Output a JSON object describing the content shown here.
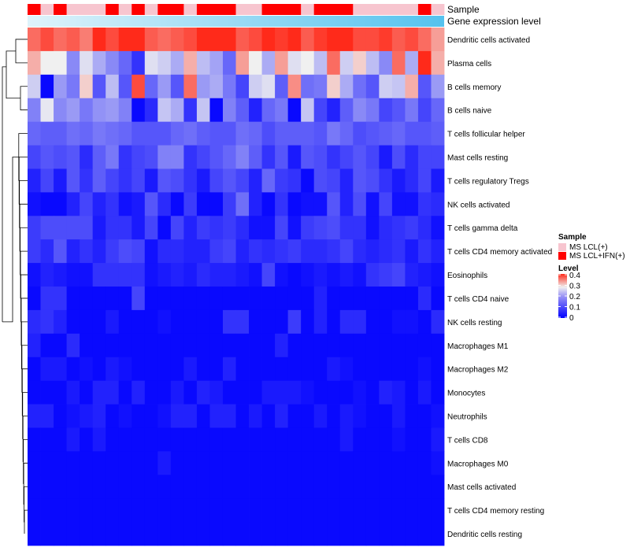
{
  "chart_data": {
    "type": "heatmap",
    "title": "",
    "annotation_tracks": [
      "Sample",
      "Gene expression level"
    ],
    "rows": [
      "Dendritic cells activated",
      "Plasma cells",
      "B cells memory",
      "B cells naive",
      "T cells follicular helper",
      "Mast cells resting",
      "T cells regulatory  Tregs",
      "NK cells activated",
      "T cells gamma delta",
      "T cells CD4 memory activated",
      "Eosinophils",
      "T cells CD4 naive",
      "NK cells resting",
      "Macrophages M1",
      "Macrophages M2",
      "Monocytes",
      "Neutrophils",
      "T cells CD8",
      "Macrophages M0",
      "Mast cells activated",
      "T cells CD4 memory resting",
      "Dendritic cells resting"
    ],
    "sample_groups": [
      1,
      0,
      1,
      0,
      0,
      0,
      1,
      0,
      1,
      0,
      1,
      1,
      0,
      1,
      1,
      1,
      0,
      0,
      1,
      1,
      1,
      0,
      1,
      1,
      1,
      0,
      0,
      0,
      0,
      0,
      1,
      0
    ],
    "values": [
      [
        0.36,
        0.38,
        0.36,
        0.37,
        0.35,
        0.4,
        0.38,
        0.4,
        0.4,
        0.37,
        0.36,
        0.37,
        0.38,
        0.4,
        0.4,
        0.4,
        0.37,
        0.38,
        0.4,
        0.39,
        0.4,
        0.37,
        0.39,
        0.4,
        0.4,
        0.38,
        0.38,
        0.39,
        0.37,
        0.38,
        0.36,
        0.33
      ],
      [
        0.32,
        0.28,
        0.28,
        0.16,
        0.26,
        0.2,
        0.16,
        0.12,
        0.06,
        0.26,
        0.24,
        0.2,
        0.32,
        0.22,
        0.19,
        0.12,
        0.33,
        0.28,
        0.2,
        0.33,
        0.26,
        0.28,
        0.22,
        0.36,
        0.24,
        0.3,
        0.22,
        0.16,
        0.36,
        0.2,
        0.4,
        0.32
      ],
      [
        0.24,
        0.01,
        0.18,
        0.14,
        0.3,
        0.1,
        0.22,
        0.1,
        0.38,
        0.12,
        0.18,
        0.1,
        0.36,
        0.18,
        0.2,
        0.14,
        0.08,
        0.24,
        0.26,
        0.11,
        0.34,
        0.13,
        0.14,
        0.3,
        0.2,
        0.13,
        0.1,
        0.24,
        0.23,
        0.32,
        0.1,
        0.18
      ],
      [
        0.15,
        0.27,
        0.16,
        0.18,
        0.14,
        0.17,
        0.18,
        0.15,
        0.01,
        0.05,
        0.23,
        0.2,
        0.06,
        0.23,
        0.01,
        0.15,
        0.11,
        0.04,
        0.12,
        0.14,
        0.01,
        0.23,
        0.08,
        0.04,
        0.11,
        0.16,
        0.14,
        0.08,
        0.1,
        0.14,
        0.08,
        0.12
      ],
      [
        0.12,
        0.11,
        0.11,
        0.13,
        0.12,
        0.14,
        0.13,
        0.12,
        0.1,
        0.1,
        0.1,
        0.12,
        0.13,
        0.11,
        0.1,
        0.1,
        0.13,
        0.12,
        0.09,
        0.11,
        0.11,
        0.11,
        0.1,
        0.14,
        0.12,
        0.09,
        0.1,
        0.11,
        0.12,
        0.1,
        0.1,
        0.11
      ],
      [
        0.08,
        0.1,
        0.09,
        0.1,
        0.05,
        0.11,
        0.14,
        0.06,
        0.08,
        0.09,
        0.15,
        0.15,
        0.06,
        0.08,
        0.1,
        0.12,
        0.15,
        0.11,
        0.06,
        0.1,
        0.03,
        0.1,
        0.09,
        0.06,
        0.08,
        0.1,
        0.08,
        0.03,
        0.09,
        0.05,
        0.08,
        0.08
      ],
      [
        0.04,
        0.08,
        0.03,
        0.1,
        0.06,
        0.11,
        0.08,
        0.06,
        0.08,
        0.03,
        0.1,
        0.09,
        0.06,
        0.03,
        0.08,
        0.1,
        0.08,
        0.04,
        0.12,
        0.07,
        0.06,
        0.01,
        0.09,
        0.08,
        0.04,
        0.1,
        0.09,
        0.06,
        0.03,
        0.05,
        0.08,
        0.03
      ],
      [
        0.02,
        0.01,
        0.01,
        0.04,
        0.08,
        0.04,
        0.06,
        0.02,
        0.03,
        0.1,
        0.05,
        0.01,
        0.07,
        0.01,
        0.01,
        0.07,
        0.13,
        0.04,
        0.01,
        0.06,
        0.01,
        0.02,
        0.02,
        0.1,
        0.04,
        0.09,
        0.02,
        0.08,
        0.02,
        0.02,
        0.06,
        0.05
      ],
      [
        0.07,
        0.09,
        0.09,
        0.09,
        0.09,
        0.03,
        0.06,
        0.06,
        0.03,
        0.08,
        0.01,
        0.08,
        0.04,
        0.07,
        0.06,
        0.07,
        0.05,
        0.02,
        0.02,
        0.08,
        0.02,
        0.07,
        0.08,
        0.09,
        0.06,
        0.06,
        0.02,
        0.05,
        0.06,
        0.07,
        0.05,
        0.02
      ],
      [
        0.07,
        0.05,
        0.1,
        0.04,
        0.06,
        0.04,
        0.07,
        0.09,
        0.08,
        0.02,
        0.05,
        0.05,
        0.04,
        0.04,
        0.07,
        0.08,
        0.04,
        0.06,
        0.05,
        0.06,
        0.07,
        0.05,
        0.05,
        0.06,
        0.08,
        0.05,
        0.04,
        0.05,
        0.06,
        0.03,
        0.06,
        0.04
      ],
      [
        0.02,
        0.04,
        0.03,
        0.02,
        0.02,
        0.06,
        0.06,
        0.06,
        0.06,
        0.02,
        0.03,
        0.04,
        0.03,
        0.05,
        0.04,
        0.04,
        0.03,
        0.02,
        0.08,
        0.02,
        0.01,
        0.02,
        0.03,
        0.02,
        0.03,
        0.02,
        0.06,
        0.07,
        0.08,
        0.04,
        0.03,
        0.02
      ],
      [
        0.01,
        0.06,
        0.06,
        0.01,
        0.01,
        0.01,
        0.01,
        0.01,
        0.08,
        0.01,
        0.01,
        0.01,
        0.01,
        0.01,
        0.01,
        0.01,
        0.01,
        0.01,
        0.01,
        0.01,
        0.01,
        0.01,
        0.04,
        0.01,
        0.01,
        0.01,
        0.01,
        0.01,
        0.01,
        0.01,
        0.05,
        0.01
      ],
      [
        0.05,
        0.06,
        0.04,
        0.01,
        0.01,
        0.01,
        0.03,
        0.01,
        0.01,
        0.01,
        0.02,
        0.01,
        0.01,
        0.01,
        0.01,
        0.06,
        0.06,
        0.01,
        0.01,
        0.01,
        0.07,
        0.01,
        0.04,
        0.01,
        0.05,
        0.05,
        0.01,
        0.01,
        0.02,
        0.02,
        0.01,
        0.05
      ],
      [
        0.04,
        0.01,
        0.01,
        0.05,
        0.01,
        0.01,
        0.01,
        0.01,
        0.01,
        0.01,
        0.01,
        0.01,
        0.01,
        0.01,
        0.01,
        0.01,
        0.01,
        0.01,
        0.01,
        0.04,
        0.01,
        0.01,
        0.01,
        0.01,
        0.01,
        0.01,
        0.01,
        0.01,
        0.01,
        0.01,
        0.01,
        0.01
      ],
      [
        0.01,
        0.03,
        0.03,
        0.01,
        0.02,
        0.01,
        0.03,
        0.02,
        0.01,
        0.01,
        0.01,
        0.01,
        0.03,
        0.01,
        0.01,
        0.04,
        0.01,
        0.01,
        0.01,
        0.01,
        0.01,
        0.01,
        0.01,
        0.03,
        0.02,
        0.01,
        0.01,
        0.01,
        0.01,
        0.01,
        0.02,
        0.01
      ],
      [
        0.01,
        0.01,
        0.01,
        0.03,
        0.01,
        0.04,
        0.04,
        0.01,
        0.04,
        0.01,
        0.01,
        0.03,
        0.01,
        0.04,
        0.03,
        0.01,
        0.01,
        0.01,
        0.03,
        0.03,
        0.03,
        0.02,
        0.01,
        0.01,
        0.01,
        0.02,
        0.01,
        0.04,
        0.03,
        0.01,
        0.03,
        0.01
      ],
      [
        0.04,
        0.04,
        0.01,
        0.02,
        0.03,
        0.04,
        0.01,
        0.02,
        0.01,
        0.01,
        0.02,
        0.04,
        0.04,
        0.01,
        0.04,
        0.04,
        0.01,
        0.03,
        0.01,
        0.04,
        0.01,
        0.01,
        0.03,
        0.01,
        0.03,
        0.02,
        0.01,
        0.01,
        0.03,
        0.01,
        0.01,
        0.02
      ],
      [
        0.01,
        0.01,
        0.01,
        0.03,
        0.01,
        0.03,
        0.01,
        0.01,
        0.01,
        0.01,
        0.01,
        0.01,
        0.01,
        0.01,
        0.01,
        0.01,
        0.01,
        0.01,
        0.01,
        0.01,
        0.01,
        0.01,
        0.01,
        0.01,
        0.03,
        0.01,
        0.01,
        0.01,
        0.02,
        0.01,
        0.01,
        0.03
      ],
      [
        0.01,
        0.01,
        0.01,
        0.01,
        0.01,
        0.01,
        0.01,
        0.01,
        0.01,
        0.01,
        0.03,
        0.01,
        0.01,
        0.01,
        0.01,
        0.01,
        0.01,
        0.01,
        0.01,
        0.01,
        0.01,
        0.01,
        0.01,
        0.01,
        0.01,
        0.01,
        0.01,
        0.01,
        0.01,
        0.01,
        0.01,
        0.02
      ],
      [
        0.01,
        0.01,
        0.01,
        0.01,
        0.01,
        0.01,
        0.01,
        0.01,
        0.01,
        0.01,
        0.01,
        0.01,
        0.01,
        0.01,
        0.01,
        0.01,
        0.01,
        0.01,
        0.01,
        0.01,
        0.01,
        0.01,
        0.01,
        0.01,
        0.01,
        0.01,
        0.01,
        0.01,
        0.01,
        0.01,
        0.01,
        0.01
      ],
      [
        0.01,
        0.01,
        0.01,
        0.01,
        0.01,
        0.01,
        0.01,
        0.01,
        0.01,
        0.01,
        0.01,
        0.01,
        0.01,
        0.01,
        0.01,
        0.01,
        0.01,
        0.01,
        0.01,
        0.01,
        0.01,
        0.01,
        0.01,
        0.01,
        0.01,
        0.01,
        0.01,
        0.01,
        0.01,
        0.01,
        0.01,
        0.01
      ],
      [
        0.01,
        0.01,
        0.01,
        0.01,
        0.01,
        0.01,
        0.01,
        0.01,
        0.01,
        0.01,
        0.01,
        0.01,
        0.01,
        0.01,
        0.01,
        0.01,
        0.01,
        0.01,
        0.01,
        0.01,
        0.01,
        0.01,
        0.01,
        0.01,
        0.01,
        0.01,
        0.01,
        0.01,
        0.01,
        0.01,
        0.01,
        0.01
      ]
    ],
    "legend": {
      "sample_title": "Sample",
      "sample_entries": [
        {
          "label": "MS LCL(+)",
          "color": "#f7c5cf"
        },
        {
          "label": "MS LCL+IFN(+)",
          "color": "#ff0000"
        }
      ],
      "level_title": "Level",
      "level_ticks": [
        "0.4",
        "0.3",
        "0.2",
        "0.1",
        "0"
      ],
      "level_range": [
        0,
        0.4
      ],
      "colors": {
        "low": "#0000ff",
        "mid": "#f0f0f0",
        "high": "#ff2a1a",
        "mid_value": 0.28
      }
    },
    "gene_expression_gradient": {
      "from": "#dff3fb",
      "to": "#55c2ee"
    }
  }
}
